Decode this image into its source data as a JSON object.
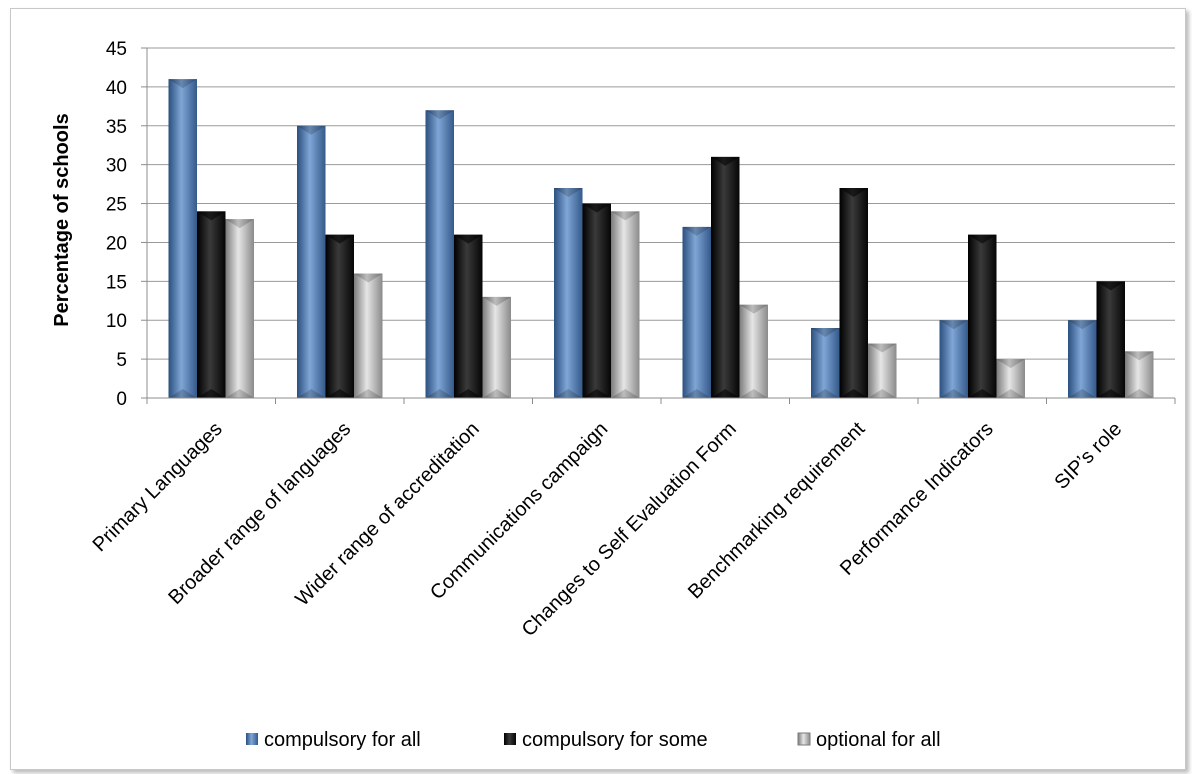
{
  "chart_data": {
    "type": "bar",
    "title": "",
    "xlabel": "",
    "ylabel": "Percentage of schools",
    "ylim": [
      0,
      45
    ],
    "yticks": [
      0,
      5,
      10,
      15,
      20,
      25,
      30,
      35,
      40,
      45
    ],
    "grid": true,
    "legend_position": "bottom",
    "categories": [
      "Primary Languages",
      "Broader range of languages",
      "Wider range of accreditation",
      "Communications campaign",
      "Changes to Self Evaluation Form",
      "Benchmarking requirement",
      "Performance Indicators",
      "SIP’s role"
    ],
    "series": [
      {
        "name": "compulsory for all",
        "color": "#4f81bd",
        "values": [
          41,
          35,
          37,
          27,
          22,
          9,
          10,
          10
        ]
      },
      {
        "name": "compulsory for some",
        "color": "#111111",
        "values": [
          24,
          21,
          21,
          25,
          31,
          27,
          21,
          15
        ]
      },
      {
        "name": "optional for all",
        "color": "#a6a6a6",
        "values": [
          23,
          16,
          13,
          24,
          12,
          7,
          5,
          6
        ]
      }
    ]
  }
}
